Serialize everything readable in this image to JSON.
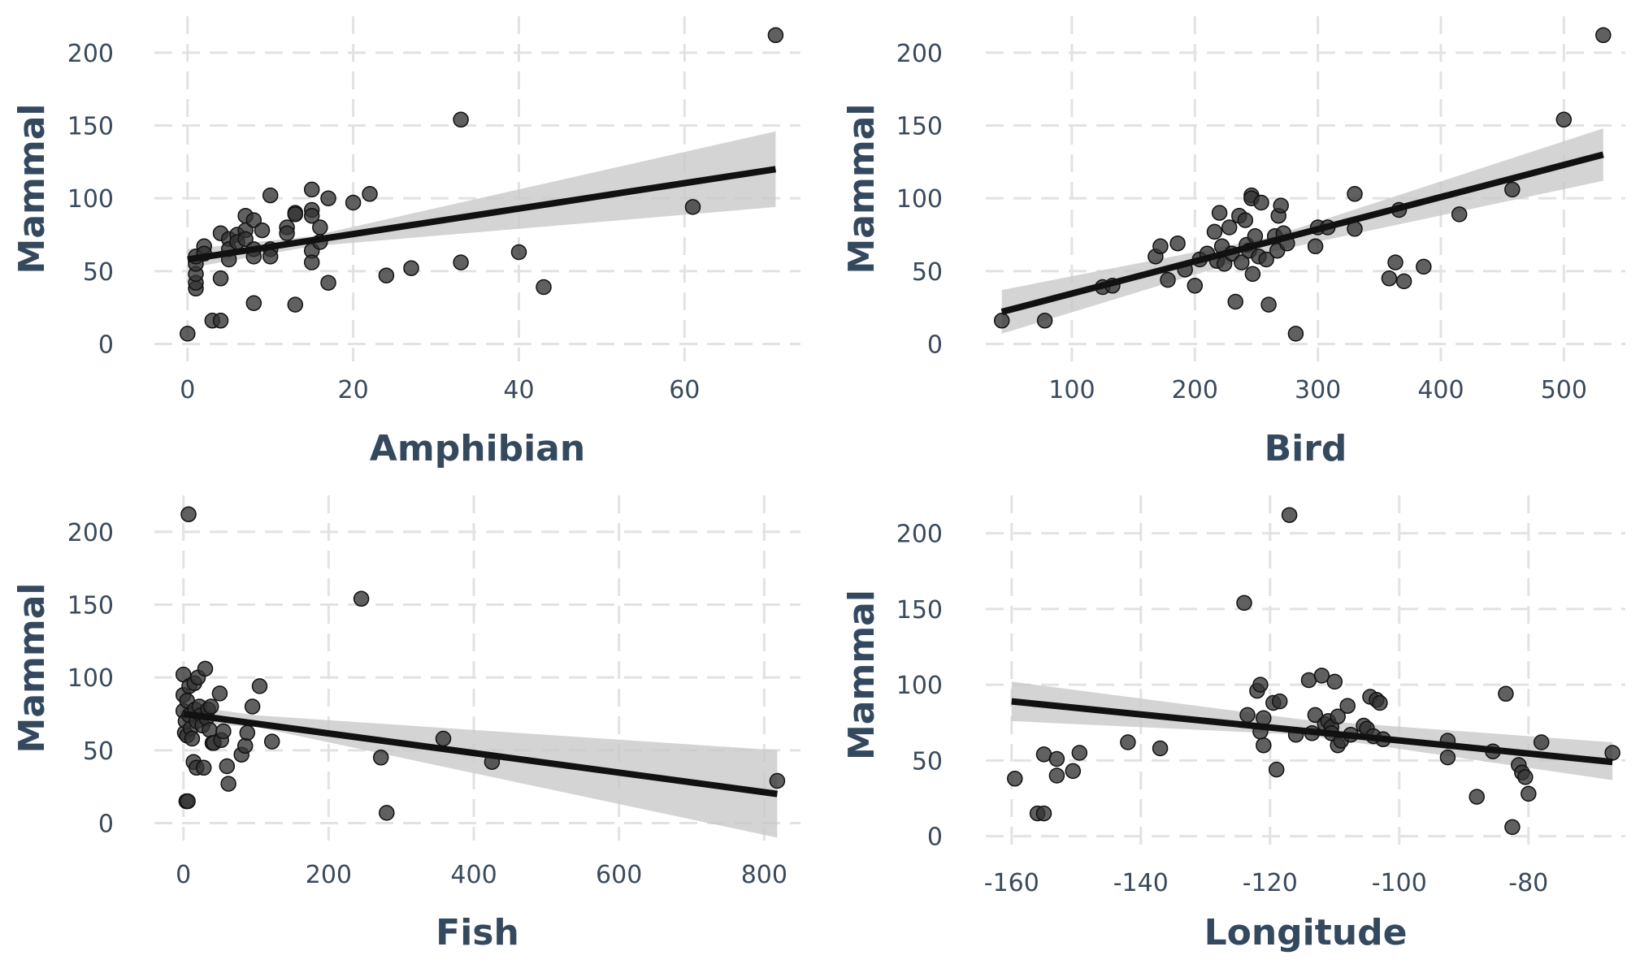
{
  "colors": {
    "point": "#333333",
    "line": "#111111",
    "band": "#c9c9c9",
    "grid": "#e2e2e2",
    "text": "#34495e"
  },
  "chart_data": [
    {
      "type": "scatter",
      "xlabel": "Amphibian",
      "ylabel": "Mammal",
      "xlim": [
        -4,
        74
      ],
      "ylim": [
        -12,
        225
      ],
      "xticks": [
        0,
        20,
        40,
        60
      ],
      "yticks": [
        0,
        50,
        100,
        150,
        200
      ],
      "grid": true,
      "points": [
        [
          0,
          7
        ],
        [
          1,
          38
        ],
        [
          1,
          42
        ],
        [
          1,
          48
        ],
        [
          1,
          55
        ],
        [
          1,
          60
        ],
        [
          2,
          67
        ],
        [
          2,
          62
        ],
        [
          3,
          16
        ],
        [
          4,
          16
        ],
        [
          4,
          45
        ],
        [
          4,
          76
        ],
        [
          5,
          72
        ],
        [
          5,
          65
        ],
        [
          5,
          58
        ],
        [
          6,
          75
        ],
        [
          6,
          70
        ],
        [
          7,
          88
        ],
        [
          7,
          78
        ],
        [
          7,
          72
        ],
        [
          8,
          85
        ],
        [
          8,
          65
        ],
        [
          8,
          60
        ],
        [
          8,
          28
        ],
        [
          9,
          78
        ],
        [
          10,
          102
        ],
        [
          10,
          65
        ],
        [
          10,
          60
        ],
        [
          12,
          80
        ],
        [
          12,
          76
        ],
        [
          13,
          90
        ],
        [
          13,
          89
        ],
        [
          13,
          27
        ],
        [
          15,
          106
        ],
        [
          15,
          92
        ],
        [
          15,
          88
        ],
        [
          15,
          64
        ],
        [
          15,
          56
        ],
        [
          16,
          80
        ],
        [
          16,
          70
        ],
        [
          17,
          100
        ],
        [
          17,
          42
        ],
        [
          20,
          97
        ],
        [
          22,
          103
        ],
        [
          24,
          47
        ],
        [
          27,
          52
        ],
        [
          33,
          154
        ],
        [
          33,
          56
        ],
        [
          40,
          63
        ],
        [
          43,
          39
        ],
        [
          61,
          94
        ],
        [
          71,
          212
        ]
      ],
      "fit": {
        "x": [
          0,
          71
        ],
        "y": [
          58,
          120
        ]
      },
      "ci": {
        "x": [
          0,
          15,
          71
        ],
        "lower": [
          52,
          67,
          94
        ],
        "upper": [
          65,
          74,
          146
        ]
      }
    },
    {
      "type": "scatter",
      "xlabel": "Bird",
      "ylabel": "Mammal",
      "xlim": [
        30,
        550
      ],
      "ylim": [
        -12,
        225
      ],
      "xticks": [
        100,
        200,
        300,
        400,
        500
      ],
      "yticks": [
        0,
        50,
        100,
        150,
        200
      ],
      "grid": true,
      "points": [
        [
          43,
          16
        ],
        [
          78,
          16
        ],
        [
          125,
          39
        ],
        [
          133,
          40
        ],
        [
          168,
          60
        ],
        [
          172,
          67
        ],
        [
          178,
          44
        ],
        [
          186,
          69
        ],
        [
          192,
          51
        ],
        [
          200,
          40
        ],
        [
          204,
          58
        ],
        [
          210,
          62
        ],
        [
          216,
          77
        ],
        [
          218,
          57
        ],
        [
          220,
          90
        ],
        [
          222,
          67
        ],
        [
          224,
          55
        ],
        [
          228,
          80
        ],
        [
          230,
          62
        ],
        [
          233,
          29
        ],
        [
          236,
          88
        ],
        [
          238,
          56
        ],
        [
          241,
          85
        ],
        [
          242,
          68
        ],
        [
          244,
          64
        ],
        [
          246,
          102
        ],
        [
          246,
          100
        ],
        [
          247,
          48
        ],
        [
          249,
          74
        ],
        [
          252,
          60
        ],
        [
          254,
          97
        ],
        [
          258,
          58
        ],
        [
          260,
          27
        ],
        [
          265,
          74
        ],
        [
          267,
          64
        ],
        [
          268,
          88
        ],
        [
          270,
          95
        ],
        [
          272,
          76
        ],
        [
          275,
          69
        ],
        [
          282,
          7
        ],
        [
          298,
          67
        ],
        [
          300,
          80
        ],
        [
          308,
          80
        ],
        [
          330,
          103
        ],
        [
          330,
          79
        ],
        [
          358,
          45
        ],
        [
          363,
          56
        ],
        [
          366,
          92
        ],
        [
          370,
          43
        ],
        [
          386,
          53
        ],
        [
          415,
          89
        ],
        [
          458,
          106
        ],
        [
          500,
          154
        ],
        [
          532,
          212
        ]
      ],
      "fit": {
        "x": [
          43,
          532
        ],
        "y": [
          22,
          130
        ]
      },
      "ci": {
        "x": [
          43,
          260,
          532
        ],
        "lower": [
          7,
          63,
          112
        ],
        "upper": [
          37,
          73,
          148
        ]
      }
    },
    {
      "type": "scatter",
      "xlabel": "Fish",
      "ylabel": "Mammal",
      "xlim": [
        -40,
        850
      ],
      "ylim": [
        -12,
        225
      ],
      "xticks": [
        0,
        200,
        400,
        600,
        800
      ],
      "yticks": [
        0,
        50,
        100,
        150,
        200
      ],
      "grid": true,
      "points": [
        [
          0,
          102
        ],
        [
          0,
          88
        ],
        [
          0,
          77
        ],
        [
          2,
          62
        ],
        [
          3,
          70
        ],
        [
          4,
          15
        ],
        [
          5,
          84
        ],
        [
          5,
          60
        ],
        [
          6,
          15
        ],
        [
          7,
          212
        ],
        [
          8,
          94
        ],
        [
          8,
          74
        ],
        [
          10,
          65
        ],
        [
          12,
          58
        ],
        [
          14,
          42
        ],
        [
          15,
          96
        ],
        [
          16,
          78
        ],
        [
          18,
          70
        ],
        [
          18,
          38
        ],
        [
          20,
          100
        ],
        [
          22,
          80
        ],
        [
          24,
          74
        ],
        [
          26,
          67
        ],
        [
          28,
          38
        ],
        [
          30,
          106
        ],
        [
          32,
          72
        ],
        [
          34,
          78
        ],
        [
          36,
          64
        ],
        [
          38,
          80
        ],
        [
          40,
          55
        ],
        [
          42,
          55
        ],
        [
          50,
          89
        ],
        [
          52,
          57
        ],
        [
          55,
          63
        ],
        [
          60,
          39
        ],
        [
          62,
          27
        ],
        [
          80,
          47
        ],
        [
          85,
          53
        ],
        [
          88,
          62
        ],
        [
          95,
          80
        ],
        [
          105,
          94
        ],
        [
          122,
          56
        ],
        [
          245,
          154
        ],
        [
          272,
          45
        ],
        [
          280,
          7
        ],
        [
          358,
          58
        ],
        [
          425,
          42
        ],
        [
          818,
          29
        ]
      ],
      "fit": {
        "x": [
          0,
          818
        ],
        "y": [
          75,
          20
        ]
      },
      "ci": {
        "x": [
          0,
          100,
          818
        ],
        "lower": [
          69,
          66,
          -10
        ],
        "upper": [
          81,
          74,
          50
        ]
      }
    },
    {
      "type": "scatter",
      "xlabel": "Longitude",
      "ylabel": "Mammal",
      "xlim": [
        -164,
        -65
      ],
      "ylim": [
        -12,
        225
      ],
      "xticks": [
        -160,
        -140,
        -120,
        -100,
        -80
      ],
      "yticks": [
        0,
        50,
        100,
        150,
        200
      ],
      "grid": true,
      "points": [
        [
          -159.5,
          38
        ],
        [
          -156,
          15
        ],
        [
          -155,
          15
        ],
        [
          -155,
          54
        ],
        [
          -153,
          40
        ],
        [
          -153,
          51
        ],
        [
          -150.5,
          43
        ],
        [
          -149.5,
          55
        ],
        [
          -142,
          62
        ],
        [
          -137,
          58
        ],
        [
          -124,
          154
        ],
        [
          -123.5,
          80
        ],
        [
          -122,
          96
        ],
        [
          -121.5,
          100
        ],
        [
          -121.5,
          69
        ],
        [
          -121,
          78
        ],
        [
          -121,
          60
        ],
        [
          -119.5,
          88
        ],
        [
          -119,
          44
        ],
        [
          -118.5,
          89
        ],
        [
          -117,
          212
        ],
        [
          -116,
          67
        ],
        [
          -114,
          103
        ],
        [
          -113.5,
          68
        ],
        [
          -113,
          80
        ],
        [
          -112,
          106
        ],
        [
          -111.5,
          74
        ],
        [
          -111,
          76
        ],
        [
          -110.5,
          72
        ],
        [
          -110.5,
          68
        ],
        [
          -110,
          102
        ],
        [
          -109.5,
          79
        ],
        [
          -109.5,
          60
        ],
        [
          -109,
          63
        ],
        [
          -108,
          86
        ],
        [
          -107.5,
          67
        ],
        [
          -105.5,
          73
        ],
        [
          -105,
          71
        ],
        [
          -104.5,
          92
        ],
        [
          -104,
          66
        ],
        [
          -103.5,
          90
        ],
        [
          -103,
          88
        ],
        [
          -102.5,
          64
        ],
        [
          -92.5,
          63
        ],
        [
          -92.5,
          52
        ],
        [
          -88,
          26
        ],
        [
          -85.5,
          56
        ],
        [
          -83.5,
          94
        ],
        [
          -82.5,
          6
        ],
        [
          -81.5,
          47
        ],
        [
          -81,
          42
        ],
        [
          -80.5,
          39
        ],
        [
          -80,
          28
        ],
        [
          -78,
          62
        ],
        [
          -67,
          55
        ]
      ],
      "fit": {
        "x": [
          -160,
          -67
        ],
        "y": [
          89,
          49
        ]
      },
      "ci": {
        "x": [
          -160,
          -115,
          -67
        ],
        "lower": [
          76,
          67,
          37
        ],
        "upper": [
          102,
          77,
          62
        ]
      }
    }
  ]
}
